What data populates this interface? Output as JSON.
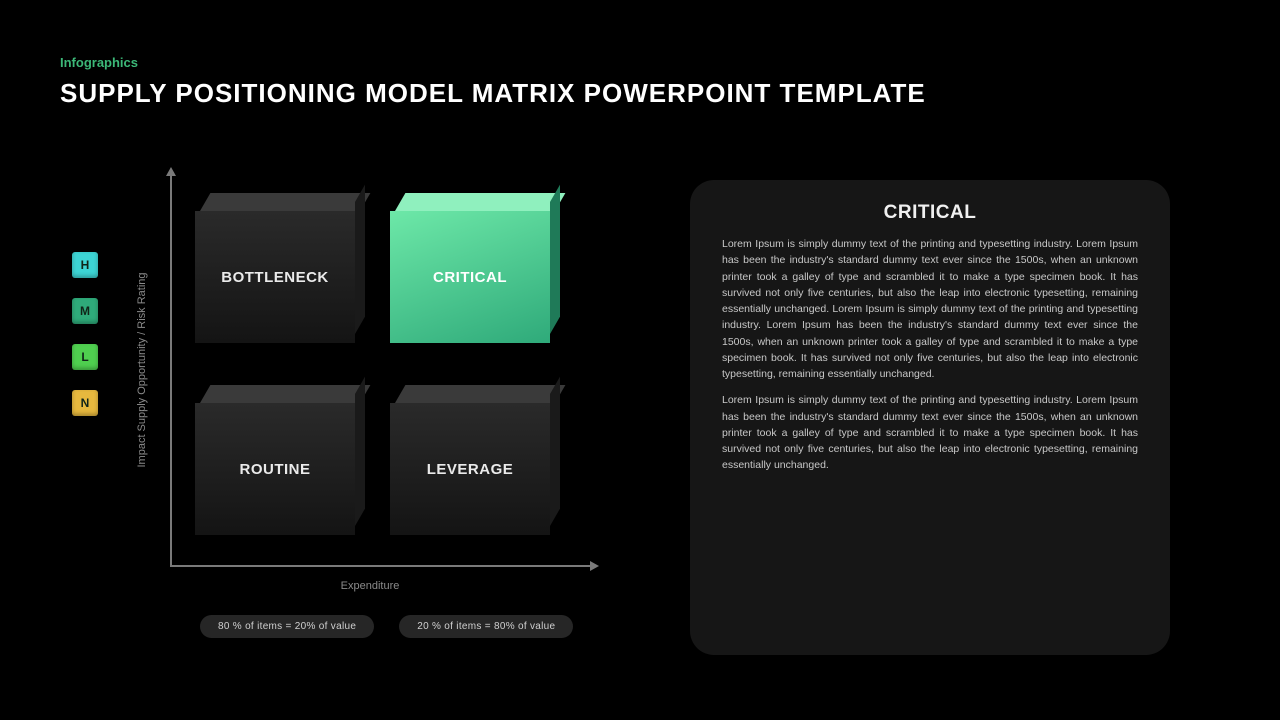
{
  "header": {
    "category": "Infographics",
    "title": "SUPPLY POSITIONING MODEL MATRIX POWERPOINT TEMPLATE"
  },
  "axes": {
    "y_label": "Impact Supply Opportunity / Risk Rating",
    "x_label": "Expenditure",
    "axis_color": "#7a7a7a",
    "label_color": "#8a8a8a",
    "label_fontsize": 11
  },
  "quadrants": {
    "top_left": {
      "label": "BOTTLENECK",
      "highlighted": false
    },
    "top_right": {
      "label": "CRITICAL",
      "highlighted": true
    },
    "bottom_left": {
      "label": "ROUTINE",
      "highlighted": false
    },
    "bottom_right": {
      "label": "LEVERAGE",
      "highlighted": false
    },
    "dark_face_gradient": [
      "#2a2a2a",
      "#141414"
    ],
    "green_face_gradient": [
      "#6de8a8",
      "#2faa7a"
    ],
    "label_color": "#ffffff",
    "label_fontsize": 15
  },
  "legend": [
    {
      "letter": "H",
      "color": "#3dd4d4"
    },
    {
      "letter": "M",
      "color": "#2faa7a"
    },
    {
      "letter": "L",
      "color": "#4fcf4f"
    },
    {
      "letter": "N",
      "color": "#e6b83e"
    }
  ],
  "pills": [
    {
      "text": "80 %  of items = 20%  of value"
    },
    {
      "text": "20 %  of items = 80%  of value"
    }
  ],
  "panel": {
    "title": "CRITICAL",
    "paragraphs": [
      "Lorem Ipsum is simply dummy text of the printing and typesetting industry. Lorem Ipsum has been the industry's standard dummy text ever since the 1500s, when an unknown printer took a galley of type and scrambled it to make a type specimen book. It has survived not only five centuries, but also the leap into electronic typesetting, remaining essentially unchanged. Lorem Ipsum is simply dummy text of the printing and typesetting industry. Lorem Ipsum has been the industry's standard dummy text ever since the 1500s, when an unknown printer took a galley of type and scrambled it to make a type specimen book. It has survived not only five centuries, but also the leap into electronic typesetting, remaining essentially unchanged.",
      "Lorem Ipsum is simply dummy text of the printing and typesetting industry. Lorem Ipsum has been the industry's standard dummy text ever since the 1500s, when an unknown printer took a galley of type and scrambled it to make a type specimen book. It has survived not only five centuries, but also the leap into electronic typesetting, remaining essentially unchanged."
    ],
    "background": "#161616",
    "title_color": "#f0f0f0",
    "body_color": "#c8c8c8",
    "body_fontsize": 10.5
  },
  "colors": {
    "page_background": "#000000",
    "category_color": "#3cb878",
    "title_color": "#ffffff"
  }
}
